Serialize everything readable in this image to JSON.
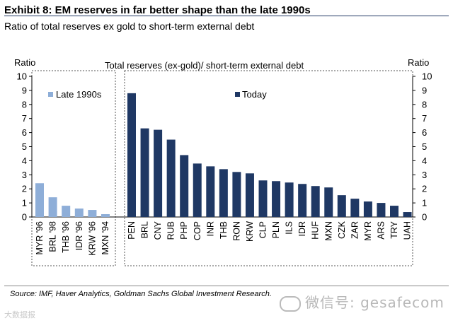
{
  "header": {
    "title": "Exhibit 8: EM reserves in far better shape than the late 1990s",
    "subtitle": "Ratio of total reserves ex gold to short-term external debt"
  },
  "footer": {
    "source": "Source: IMF, Haver Analytics, Goldman Sachs Global Investment Research.",
    "wechat": "微信号: gesafecom",
    "watermark": "大数据报"
  },
  "colors": {
    "late": "#8eaed8",
    "today": "#1f3864"
  },
  "chart_data": {
    "type": "bar",
    "title": "Total reserves (ex-gold)/ short-term external debt",
    "ylabel_left": "Ratio",
    "ylabel_right": "Ratio",
    "ylim": [
      0,
      10
    ],
    "yticks": [
      0,
      1,
      2,
      3,
      4,
      5,
      6,
      7,
      8,
      9,
      10
    ],
    "series": [
      {
        "name": "Late 1990s",
        "categories": [
          "MYR '96",
          "BRL '98",
          "THB '96",
          "IDR '96",
          "KRW '96",
          "MXN '94"
        ],
        "values": [
          2.4,
          1.4,
          0.8,
          0.6,
          0.5,
          0.2
        ]
      },
      {
        "name": "Today",
        "categories": [
          "PEN",
          "BRL",
          "CNY",
          "RUB",
          "PHP",
          "COP",
          "INR",
          "THB",
          "RON",
          "KRW",
          "CLP",
          "PLN",
          "ILS",
          "IDR",
          "HUF",
          "MXN",
          "CZK",
          "ZAR",
          "MYR",
          "ARS",
          "TRY",
          "UAH"
        ],
        "values": [
          8.8,
          6.3,
          6.2,
          5.5,
          4.4,
          3.8,
          3.6,
          3.4,
          3.2,
          3.1,
          2.6,
          2.55,
          2.45,
          2.35,
          2.2,
          2.1,
          1.55,
          1.3,
          1.1,
          1.0,
          0.8,
          0.35
        ]
      }
    ]
  }
}
